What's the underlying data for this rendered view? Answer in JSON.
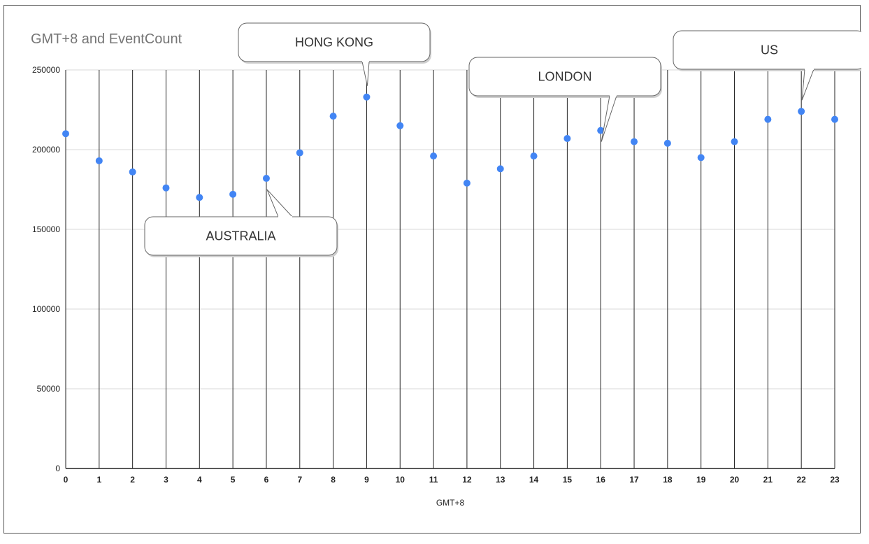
{
  "chart_data": {
    "type": "scatter",
    "title": "GMT+8 and EventCount",
    "xlabel": "GMT+8",
    "ylabel": "",
    "x": [
      0,
      1,
      2,
      3,
      4,
      5,
      6,
      7,
      8,
      9,
      10,
      11,
      12,
      13,
      14,
      15,
      16,
      17,
      18,
      19,
      20,
      21,
      22,
      23
    ],
    "y": [
      210000,
      193000,
      186000,
      176000,
      170000,
      172000,
      182000,
      198000,
      221000,
      233000,
      215000,
      196000,
      179000,
      188000,
      196000,
      207000,
      212000,
      205000,
      204000,
      195000,
      205000,
      219000,
      224000,
      219000
    ],
    "xlim": [
      0,
      23
    ],
    "ylim": [
      0,
      250000
    ],
    "y_ticks": [
      "0",
      "50000",
      "100000",
      "150000",
      "200000",
      "250000"
    ],
    "x_ticks": [
      "0",
      "1",
      "2",
      "3",
      "4",
      "5",
      "6",
      "7",
      "8",
      "9",
      "10",
      "11",
      "12",
      "13",
      "14",
      "15",
      "16",
      "17",
      "18",
      "19",
      "20",
      "21",
      "22",
      "23"
    ],
    "grid": "horizontal light gray, vertical dark",
    "point_color": "#4285f4",
    "annotations": [
      {
        "text": "HONG KONG",
        "x": 9,
        "y": 233000
      },
      {
        "text": "AUSTRALIA",
        "x": 6,
        "y": 182000
      },
      {
        "text": "LONDON",
        "x": 16,
        "y": 212000
      },
      {
        "text": "US",
        "x": 22,
        "y": 224000
      }
    ]
  }
}
